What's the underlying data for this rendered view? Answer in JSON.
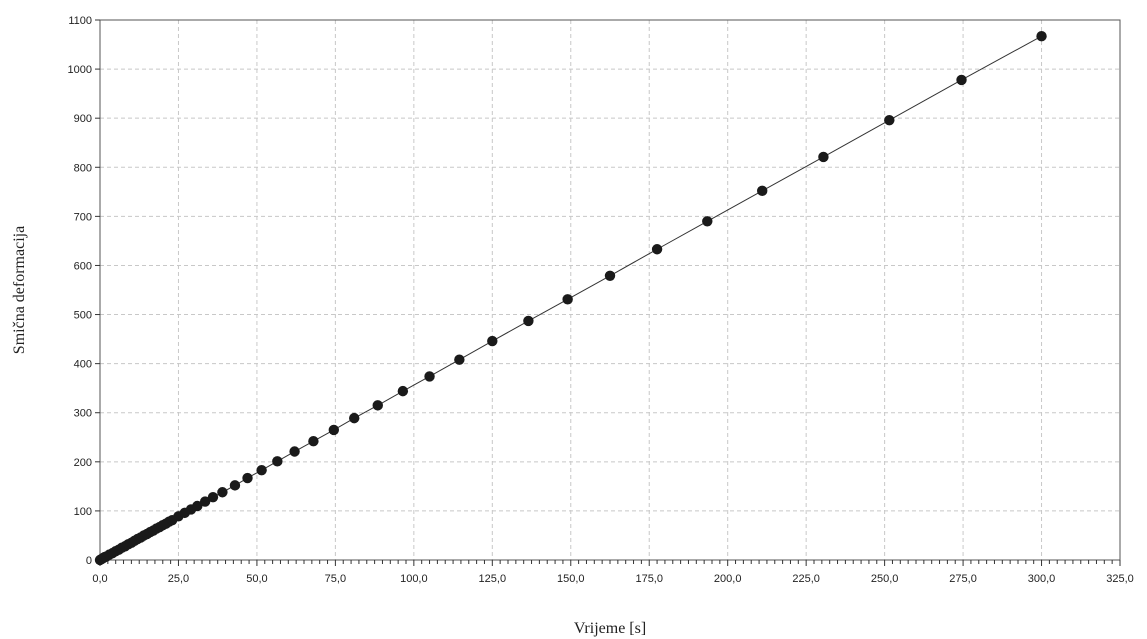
{
  "chart_data": {
    "type": "scatter",
    "title": "",
    "xlabel": "Vrijeme [s]",
    "ylabel": "Smična deformacija",
    "xlim": [
      0,
      325
    ],
    "ylim": [
      0,
      1100
    ],
    "grid": true,
    "connected_line": true,
    "x_ticks": [
      0,
      25,
      50,
      75,
      100,
      125,
      150,
      175,
      200,
      225,
      250,
      275,
      300,
      325
    ],
    "x_tick_labels": [
      "0,0",
      "25,0",
      "50,0",
      "75,0",
      "100,0",
      "125,0",
      "150,0",
      "175,0",
      "200,0",
      "225,0",
      "250,0",
      "275,0",
      "300,0",
      "325,0"
    ],
    "y_ticks": [
      0,
      100,
      200,
      300,
      400,
      500,
      600,
      700,
      800,
      900,
      1000,
      1100
    ],
    "y_tick_labels": [
      "0",
      "100",
      "200",
      "300",
      "400",
      "500",
      "600",
      "700",
      "800",
      "900",
      "1000",
      "1100"
    ],
    "colors": {
      "marker": "#1a1a1a",
      "line": "#333333",
      "grid": "#c8c8c8",
      "frame": "#555555"
    },
    "series": [
      {
        "x": [
          0,
          0.5,
          1,
          1.5,
          2,
          3,
          4,
          5,
          6,
          7,
          8,
          9,
          10,
          11,
          12,
          13,
          14,
          15,
          16,
          17,
          18,
          19,
          20,
          21,
          22,
          23,
          25,
          27,
          29,
          31,
          33.5,
          36,
          39,
          43,
          47,
          51.5,
          56.5,
          62,
          68,
          74.5,
          81,
          88.5,
          96.5,
          105,
          114.5,
          125,
          136.5,
          149,
          162.5,
          177.5,
          193.5,
          211,
          230.5,
          251.5,
          274.5,
          300
        ],
        "y": [
          0,
          2,
          4,
          6,
          7,
          11,
          14,
          18,
          21,
          25,
          28,
          32,
          35,
          39,
          43,
          46,
          50,
          53,
          57,
          60,
          64,
          67,
          71,
          74,
          78,
          81,
          89,
          96,
          103,
          110,
          119,
          128,
          138,
          152,
          167,
          183,
          201,
          221,
          242,
          265,
          289,
          315,
          344,
          374,
          408,
          446,
          487,
          531,
          579,
          633,
          690,
          752,
          821,
          896,
          978,
          1067
        ]
      }
    ]
  }
}
